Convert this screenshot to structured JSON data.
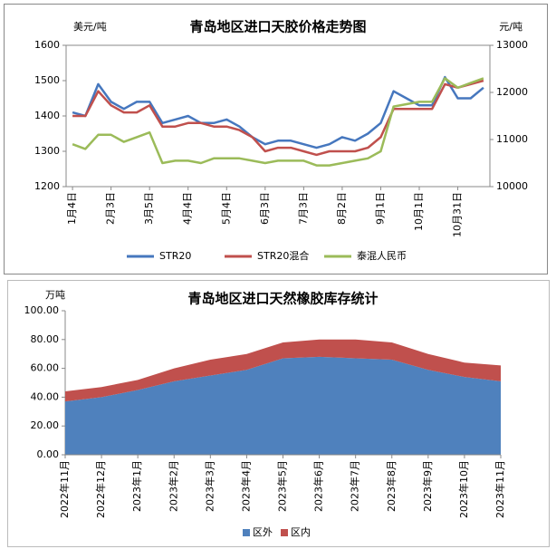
{
  "chart_data": [
    {
      "type": "line",
      "title": "青岛地区进口天胶价格走势图",
      "y_label": "美元/吨",
      "y2_label": "元/吨",
      "categories": [
        "1月4日",
        null,
        null,
        "2月3日",
        null,
        null,
        "3月5日",
        null,
        null,
        "4月4日",
        null,
        null,
        "5月4日",
        null,
        null,
        "6月3日",
        null,
        null,
        "7月3日",
        null,
        null,
        "8月2日",
        null,
        null,
        "9月1日",
        null,
        null,
        "10月1日",
        null,
        null,
        "10月31日",
        null,
        null
      ],
      "series": [
        {
          "name": "STR20",
          "color": "#4677be",
          "values": [
            1410,
            1400,
            1490,
            1440,
            1420,
            1440,
            1440,
            1380,
            1390,
            1400,
            1380,
            1380,
            1390,
            1370,
            1340,
            1320,
            1330,
            1330,
            1320,
            1310,
            1320,
            1340,
            1330,
            1350,
            1380,
            1470,
            1450,
            1430,
            1430,
            1510,
            1450,
            1450,
            1480
          ]
        },
        {
          "name": "STR20混合",
          "color": "#c0504d",
          "values": [
            1400,
            1400,
            1470,
            1430,
            1410,
            1410,
            1430,
            1370,
            1370,
            1380,
            1380,
            1370,
            1370,
            1360,
            1340,
            1300,
            1310,
            1310,
            1300,
            1290,
            1300,
            1300,
            1300,
            1310,
            1340,
            1420,
            1420,
            1420,
            1420,
            1490,
            1480,
            1490,
            1500
          ]
        },
        {
          "name": "泰混人民币",
          "color": "#9bbb59",
          "axis": "y2",
          "values": [
            10900,
            10800,
            11100,
            11100,
            10950,
            11050,
            11150,
            10500,
            10550,
            10550,
            10500,
            10600,
            10600,
            10600,
            10550,
            10500,
            10550,
            10550,
            10550,
            10450,
            10450,
            10500,
            10550,
            10600,
            10750,
            11700,
            11750,
            11800,
            11800,
            12300,
            12100,
            12200,
            12300
          ]
        }
      ],
      "ylim": [
        1200,
        1600
      ],
      "yticks": [
        1200,
        1300,
        1400,
        1500,
        1600
      ],
      "y2lim": [
        10000,
        13000
      ],
      "y2ticks": [
        10000,
        11000,
        12000,
        13000
      ],
      "legend": "bottom"
    },
    {
      "type": "area",
      "stacked": true,
      "title": "青岛地区进口天然橡胶库存统计",
      "y_label": "万吨",
      "categories": [
        "2022年11月",
        "2022年12月",
        "2023年1月",
        "2023年2月",
        "2023年3月",
        "2023年4月",
        "2023年5月",
        "2023年6月",
        "2023年7月",
        "2023年8月",
        "2023年9月",
        "2023年10月",
        "2023年11月"
      ],
      "series": [
        {
          "name": "区外",
          "color": "#4f81bd",
          "values": [
            37,
            40,
            45,
            51,
            55,
            59,
            67,
            68,
            67,
            66,
            59,
            54,
            51
          ]
        },
        {
          "name": "区内",
          "color": "#c0504d",
          "values": [
            7,
            7,
            7,
            9,
            11,
            11,
            11,
            12,
            13,
            12,
            11,
            10,
            11
          ]
        }
      ],
      "ylim": [
        0,
        100
      ],
      "yticks": [
        {
          "value": 0,
          "label": "0.00"
        },
        {
          "value": 20,
          "label": "20.00"
        },
        {
          "value": 40,
          "label": "40.00"
        },
        {
          "value": 60,
          "label": "60.00"
        },
        {
          "value": 80,
          "label": "80.00"
        },
        {
          "value": 100,
          "label": "100.00"
        }
      ],
      "legend": "bottom"
    }
  ]
}
